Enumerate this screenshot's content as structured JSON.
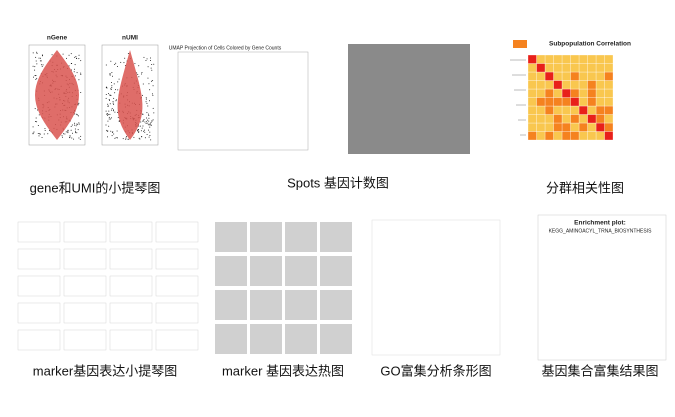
{
  "panels": [
    {
      "caption": "gene和UMI的小提琴图",
      "plots": [
        "nGene",
        "nUMI"
      ]
    },
    {
      "caption": "Spots 基因计数图",
      "title": "UMAP Projection of Cells Colored by Gene Counts"
    },
    {
      "caption": ""
    },
    {
      "caption": "分群相关性图",
      "title": "Subpopulation Correlation"
    },
    {
      "caption": "marker基因表达小提琴图"
    },
    {
      "caption": "marker 基因表达热图"
    },
    {
      "caption": "GO富集分析条形图"
    },
    {
      "caption": "基因集合富集结果图",
      "title": "Enrichment plot:",
      "subtitle": "KEGG_AMINOACYL_TRNA_BIOSYNTHESIS"
    }
  ]
}
